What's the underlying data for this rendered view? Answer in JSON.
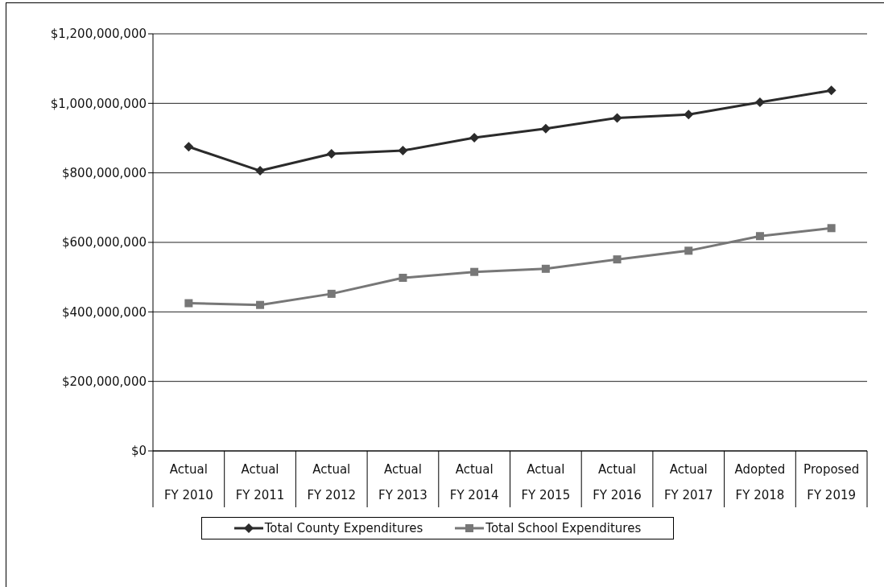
{
  "chart_data": {
    "type": "line",
    "categories": [
      "Actual FY 2010",
      "Actual FY 2011",
      "Actual FY 2012",
      "Actual FY 2013",
      "Actual FY 2014",
      "Actual FY 2015",
      "Actual FY 2016",
      "Actual FY 2017",
      "Adopted FY 2018",
      "Proposed FY 2019"
    ],
    "series": [
      {
        "name": "Total County Expenditures",
        "color": "#2b2b2b",
        "marker": "diamond",
        "values": [
          875000000,
          806000000,
          855000000,
          864000000,
          901000000,
          927000000,
          958000000,
          968000000,
          1003000000,
          1037000000
        ]
      },
      {
        "name": "Total School Expenditures",
        "color": "#777777",
        "marker": "square",
        "values": [
          425000000,
          420000000,
          452000000,
          498000000,
          515000000,
          524000000,
          551000000,
          576000000,
          618000000,
          641000000
        ]
      }
    ],
    "ylim": [
      0,
      1200000000
    ],
    "yticks": [
      {
        "value": 0,
        "label": "$0"
      },
      {
        "value": 200000000,
        "label": "$200,000,000"
      },
      {
        "value": 400000000,
        "label": "$400,000,000"
      },
      {
        "value": 600000000,
        "label": "$600,000,000"
      },
      {
        "value": 800000000,
        "label": "$800,000,000"
      },
      {
        "value": 1000000000,
        "label": "$1,000,000,000"
      },
      {
        "value": 1200000000,
        "label": "$1,200,000,000"
      }
    ],
    "grid": "y",
    "legend": "bottom"
  }
}
